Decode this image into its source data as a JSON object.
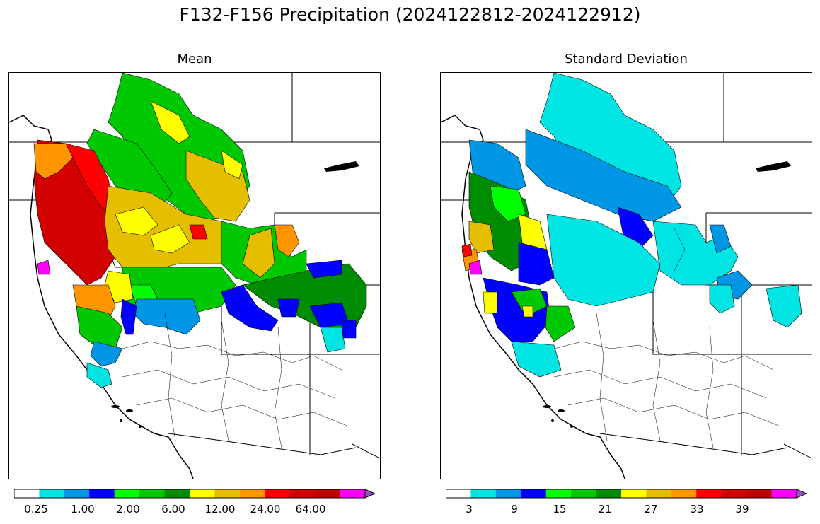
{
  "title": "F132-F156 Precipitation (2024122812-2024122912)",
  "panels": [
    {
      "id": "mean",
      "subtitle": "Mean",
      "colorbar": {
        "colors": [
          "#ffffff",
          "#00e4e4",
          "#0096e6",
          "#0000ff",
          "#00ff00",
          "#00c800",
          "#008c00",
          "#ffff00",
          "#e6be00",
          "#ff9600",
          "#ff0000",
          "#d20000",
          "#be0000",
          "#ff00ff",
          "#9650c8"
        ],
        "tick_labels": [
          "0.25",
          "1.00",
          "2.00",
          "6.00",
          "12.00",
          "24.00",
          "64.00"
        ],
        "extend": "max"
      }
    },
    {
      "id": "std",
      "subtitle": "Standard Deviation",
      "colorbar": {
        "colors": [
          "#ffffff",
          "#00e4e4",
          "#0096e6",
          "#0000ff",
          "#00ff00",
          "#00c800",
          "#008c00",
          "#ffff00",
          "#e6be00",
          "#ff9600",
          "#ff0000",
          "#d20000",
          "#be0000",
          "#ff00ff",
          "#9650c8"
        ],
        "tick_labels": [
          "3",
          "9",
          "15",
          "21",
          "27",
          "33",
          "39"
        ],
        "extend": "max"
      }
    }
  ]
}
